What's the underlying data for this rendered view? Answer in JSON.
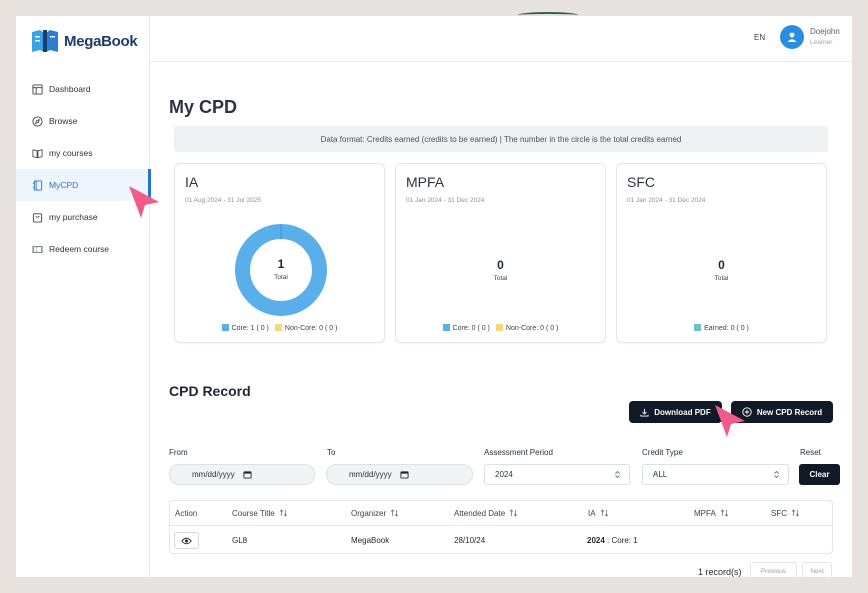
{
  "app": {
    "logo_text": "MegaBook"
  },
  "sidebar": {
    "items": [
      {
        "label": "Dashboard",
        "icon": "layout-icon"
      },
      {
        "label": "Browse",
        "icon": "compass-icon"
      },
      {
        "label": "my courses",
        "icon": "book-open-icon"
      },
      {
        "label": "MyCPD",
        "icon": "notebook-icon",
        "active": true
      },
      {
        "label": "my purchase",
        "icon": "bag-icon"
      },
      {
        "label": "Redeem course",
        "icon": "ticket-icon"
      }
    ]
  },
  "header": {
    "lang": "EN",
    "user_name": "Doejohn",
    "user_role": "Learner"
  },
  "page": {
    "title": "My CPD",
    "info": "Data format: Credits earned (credits to be earned) | The number in the circle is the total credits earned"
  },
  "cards": [
    {
      "name": "IA",
      "period": "01 Aug 2024 - 31 Jul 2025",
      "total": "1",
      "total_label": "Total",
      "core_fraction": 1,
      "legend": [
        "Core: 1 ( 0 )",
        "Non-Core: 0 ( 0 )"
      ]
    },
    {
      "name": "MPFA",
      "period": "01 Jan 2024 - 31 Dec 2024",
      "total": "0",
      "total_label": "Total",
      "legend": [
        "Core: 0 ( 0 )",
        "Non-Core: 0 ( 0 )"
      ]
    },
    {
      "name": "SFC",
      "period": "01 Jan 2024 - 31 Dec 2024",
      "total": "0",
      "total_label": "Total",
      "legend": [
        "Earned: 0 ( 0 )"
      ]
    }
  ],
  "colors": {
    "core": "#5aafea",
    "non_core": "#f7d77a",
    "earned": "#6cc3c6",
    "accent": "#2277c8",
    "dark": "#111927"
  },
  "record": {
    "title": "CPD Record",
    "download_label": "Download PDF",
    "new_label": "New CPD Record"
  },
  "filters": {
    "from_label": "From",
    "from_value": "mm/dd/yyyy",
    "to_label": "To",
    "to_value": "mm/dd/yyyy",
    "period_label": "Assessment Period",
    "period_value": "2024",
    "credit_label": "Credit Type",
    "credit_value": "ALL",
    "reset_label": "Reset",
    "clear_label": "Clear"
  },
  "table": {
    "headers": [
      "Action",
      "Course Title",
      "Organizer",
      "Attended Date",
      "IA",
      "MPFA",
      "SFC"
    ],
    "rows": [
      {
        "course": "GL8",
        "organizer": "MegaBook",
        "date": "28/10/24",
        "ia_year": "2024",
        "ia_rest": " : Core: 1"
      }
    ]
  },
  "pager": {
    "count": "1 record(s)",
    "previous": "Previous",
    "next": "Next"
  }
}
